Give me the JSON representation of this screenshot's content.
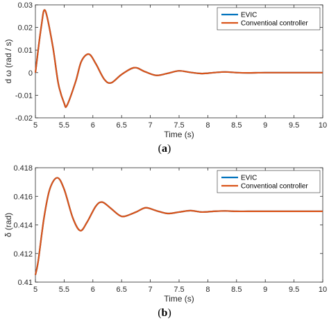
{
  "colors": {
    "evic": "#0072BD",
    "conventional": "#D95319",
    "axis": "#262626"
  },
  "panels": [
    {
      "label_open": "(",
      "label_letter": "a",
      "label_close": ")"
    },
    {
      "label_open": "(",
      "label_letter": "b",
      "label_close": ")"
    }
  ],
  "chart_data": [
    {
      "type": "line",
      "title": "",
      "xlabel": "Time (s)",
      "ylabel": "d ω (rad / s)",
      "xlim": [
        5,
        10
      ],
      "ylim": [
        -0.02,
        0.03
      ],
      "xticks": [
        5,
        5.5,
        6,
        6.5,
        7,
        7.5,
        8,
        8.5,
        9,
        9.5,
        10
      ],
      "xtick_labels": [
        "5",
        "5.5",
        "6",
        "6.5",
        "7",
        "7.5",
        "8",
        "8.5",
        "9",
        "9.5",
        "10"
      ],
      "yticks": [
        -0.02,
        -0.01,
        0,
        0.01,
        0.02,
        0.03
      ],
      "ytick_labels": [
        "-0.02",
        "-0.01",
        "0",
        "0.01",
        "0.02",
        "0.03"
      ],
      "grid": false,
      "legend": "top-right",
      "series": [
        {
          "name": "EVIC",
          "color": "#0072BD",
          "x": [
            5.0,
            5.1,
            5.17,
            5.3,
            5.4,
            5.5,
            5.55,
            5.7,
            5.8,
            5.93,
            6.05,
            6.2,
            6.32,
            6.5,
            6.72,
            6.9,
            7.1,
            7.3,
            7.5,
            7.7,
            7.9,
            8.1,
            8.3,
            8.5,
            8.7,
            9.0,
            9.5,
            10.0
          ],
          "y": [
            0.0,
            0.02,
            0.0275,
            0.012,
            -0.005,
            -0.0135,
            -0.0145,
            -0.004,
            0.005,
            0.0082,
            0.004,
            -0.003,
            -0.0045,
            -0.0008,
            0.0022,
            0.0005,
            -0.0012,
            -0.0003,
            0.0008,
            0.0001,
            -0.0004,
            0.0,
            0.0003,
            0.0,
            -0.0001,
            0.0,
            0.0,
            0.0
          ]
        },
        {
          "name": "Conventioal controller",
          "color": "#D95319",
          "x": [
            5.0,
            5.1,
            5.17,
            5.3,
            5.4,
            5.5,
            5.55,
            5.7,
            5.8,
            5.93,
            6.05,
            6.2,
            6.32,
            6.5,
            6.72,
            6.9,
            7.1,
            7.3,
            7.5,
            7.7,
            7.9,
            8.1,
            8.3,
            8.5,
            8.7,
            9.0,
            9.5,
            10.0
          ],
          "y": [
            0.0,
            0.02,
            0.0275,
            0.012,
            -0.005,
            -0.0135,
            -0.0145,
            -0.004,
            0.005,
            0.0082,
            0.004,
            -0.003,
            -0.0045,
            -0.0008,
            0.0022,
            0.0005,
            -0.0012,
            -0.0003,
            0.0008,
            0.0001,
            -0.0004,
            0.0,
            0.0003,
            0.0,
            -0.0001,
            0.0,
            0.0,
            0.0
          ]
        }
      ]
    },
    {
      "type": "line",
      "title": "",
      "xlabel": "Time (s)",
      "ylabel": "δ (rad)",
      "xlim": [
        5,
        10
      ],
      "ylim": [
        0.41,
        0.418
      ],
      "xticks": [
        5,
        5.5,
        6,
        6.5,
        7,
        7.5,
        8,
        8.5,
        9,
        9.5,
        10
      ],
      "xtick_labels": [
        "5",
        "5.5",
        "6",
        "6.5",
        "7",
        "7.5",
        "8",
        "8.5",
        "9",
        "9.5",
        "10"
      ],
      "yticks": [
        0.41,
        0.412,
        0.414,
        0.416,
        0.418
      ],
      "ytick_labels": [
        "0.41",
        "0.412",
        "0.414",
        "0.416",
        "0.418"
      ],
      "grid": false,
      "legend": "top-right",
      "series": [
        {
          "name": "EVIC",
          "color": "#0072BD",
          "x": [
            5.0,
            5.05,
            5.15,
            5.25,
            5.38,
            5.5,
            5.65,
            5.78,
            5.9,
            6.05,
            6.16,
            6.3,
            6.45,
            6.55,
            6.75,
            6.92,
            7.1,
            7.3,
            7.5,
            7.7,
            7.9,
            8.1,
            8.3,
            8.5,
            8.7,
            9.0,
            9.5,
            10.0
          ],
          "y": [
            0.4105,
            0.4115,
            0.4145,
            0.4165,
            0.4173,
            0.4165,
            0.4145,
            0.4136,
            0.4142,
            0.4153,
            0.4156,
            0.4152,
            0.4147,
            0.4146,
            0.4149,
            0.4152,
            0.415,
            0.4148,
            0.4149,
            0.415,
            0.4149,
            0.41495,
            0.41498,
            0.41495,
            0.41495,
            0.41495,
            0.41495,
            0.41495
          ]
        },
        {
          "name": "Conventioal controller",
          "color": "#D95319",
          "x": [
            5.0,
            5.05,
            5.15,
            5.25,
            5.38,
            5.5,
            5.65,
            5.78,
            5.9,
            6.05,
            6.16,
            6.3,
            6.45,
            6.55,
            6.75,
            6.92,
            7.1,
            7.3,
            7.5,
            7.7,
            7.9,
            8.1,
            8.3,
            8.5,
            8.7,
            9.0,
            9.5,
            10.0
          ],
          "y": [
            0.4105,
            0.4115,
            0.4145,
            0.4165,
            0.4173,
            0.4165,
            0.4145,
            0.4136,
            0.4142,
            0.4153,
            0.4156,
            0.4152,
            0.4147,
            0.4146,
            0.4149,
            0.4152,
            0.415,
            0.4148,
            0.4149,
            0.415,
            0.4149,
            0.41495,
            0.41498,
            0.41495,
            0.41495,
            0.41495,
            0.41495,
            0.41495
          ]
        }
      ]
    }
  ]
}
